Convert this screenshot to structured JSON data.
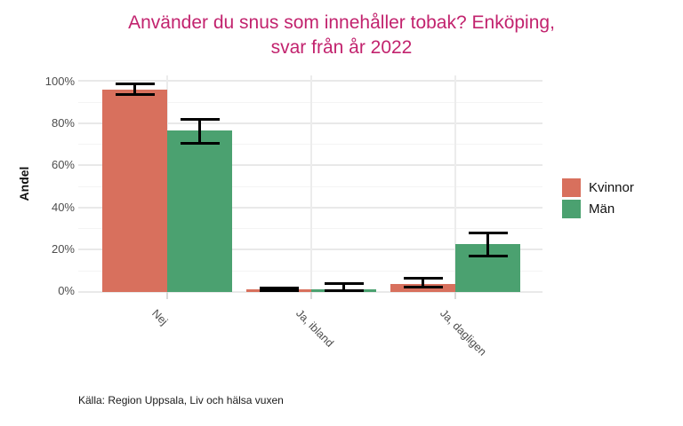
{
  "title": {
    "line1": "Använder du snus som innehåller tobak? Enköping,",
    "line2": "svar från år 2022",
    "color": "#C2236E"
  },
  "y_axis": {
    "label": "Andel",
    "ticks": [
      "0%",
      "20%",
      "40%",
      "60%",
      "80%",
      "100%"
    ]
  },
  "legend": {
    "items": [
      {
        "label": "Kvinnor",
        "color": "#D8705D"
      },
      {
        "label": "Män",
        "color": "#4BA170"
      }
    ]
  },
  "caption": "Källa: Region Uppsala, Liv och hälsa vuxen",
  "chart_data": {
    "type": "bar",
    "title": "Använder du snus som innehåller tobak? Enköping, svar från år 2022",
    "categories": [
      "Nej",
      "Ja, ibland",
      "Ja, dagligen"
    ],
    "series": [
      {
        "name": "Kvinnor",
        "color": "#D8705D",
        "values": [
          96,
          1,
          3.5
        ],
        "error_low": [
          93.5,
          0.4,
          2
        ],
        "error_high": [
          98.5,
          1.8,
          6.5
        ]
      },
      {
        "name": "Män",
        "color": "#4BA170",
        "values": [
          76.5,
          1,
          22.5
        ],
        "error_low": [
          70.5,
          0.3,
          17
        ],
        "error_high": [
          81.5,
          3.6,
          28
        ]
      }
    ],
    "xlabel": "",
    "ylabel": "Andel",
    "ylim": [
      0,
      100
    ],
    "y_tick_step_major": 20,
    "y_tick_step_minor": 10,
    "grid": true,
    "error_bars": true,
    "legend_position": "right"
  }
}
